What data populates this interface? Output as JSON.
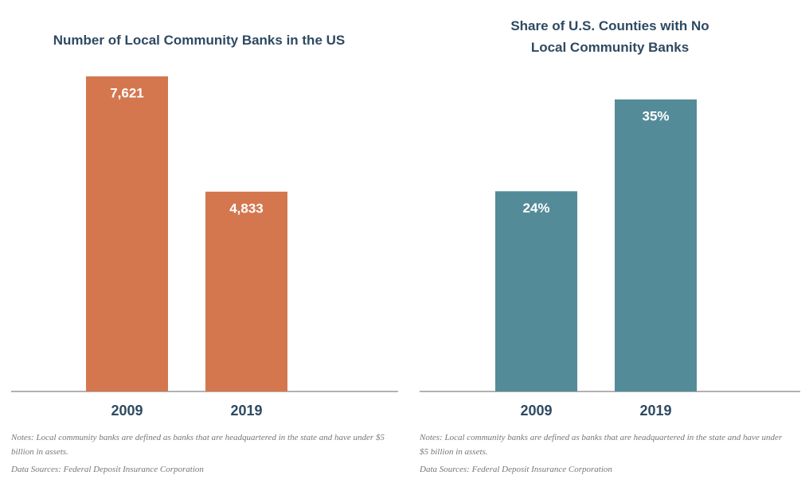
{
  "chart_data": [
    {
      "type": "bar",
      "title": "Number of Local Community Banks in the US",
      "categories": [
        "2009",
        "2019"
      ],
      "values": [
        7621,
        4833
      ],
      "value_labels": [
        "7,621",
        "4,833"
      ],
      "color": "#d4774f",
      "notes": "Notes: Local community banks are defined as banks that are headquartered in the state and have under $5 billion in assets.",
      "source": "Data Sources: Federal Deposit Insurance Corporation"
    },
    {
      "type": "bar",
      "title": "Share of U.S. Counties with No Local Community Banks",
      "categories": [
        "2009",
        "2019"
      ],
      "values": [
        24,
        35
      ],
      "value_labels": [
        "24%",
        "35%"
      ],
      "color": "#548b98",
      "notes": "Notes: Local community banks are defined as banks that are headquartered in the state and have under $5 billion in assets.",
      "source": "Data Sources: Federal Deposit Insurance Corporation"
    }
  ]
}
